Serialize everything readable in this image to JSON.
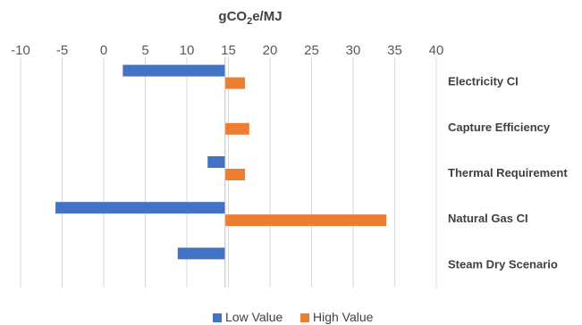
{
  "chart_data": {
    "type": "bar",
    "orientation": "horizontal",
    "title": "",
    "xlabel": "gCO₂e/MJ",
    "xlabel_parts": {
      "before": "gCO",
      "sub": "2",
      "after": "e/MJ"
    },
    "ylabel": "",
    "xlim": [
      -10,
      40
    ],
    "xticks": [
      -10,
      -5,
      0,
      5,
      10,
      15,
      20,
      25,
      30,
      35,
      40
    ],
    "x_axis_position": "top",
    "category_label_position": "right",
    "baseline": 14.6,
    "grid": true,
    "legend_position": "bottom",
    "categories": [
      "Electricity CI",
      "Capture Efficiency",
      "Thermal Requirement",
      "Natural Gas CI",
      "Steam Dry Scenario"
    ],
    "series": [
      {
        "name": "Low Value",
        "color": "#4472C4",
        "values": [
          2.3,
          null,
          12.5,
          -5.8,
          8.9
        ]
      },
      {
        "name": "High Value",
        "color": "#ED7D31",
        "values": [
          17.0,
          17.5,
          17.0,
          34.0,
          null
        ]
      }
    ]
  }
}
